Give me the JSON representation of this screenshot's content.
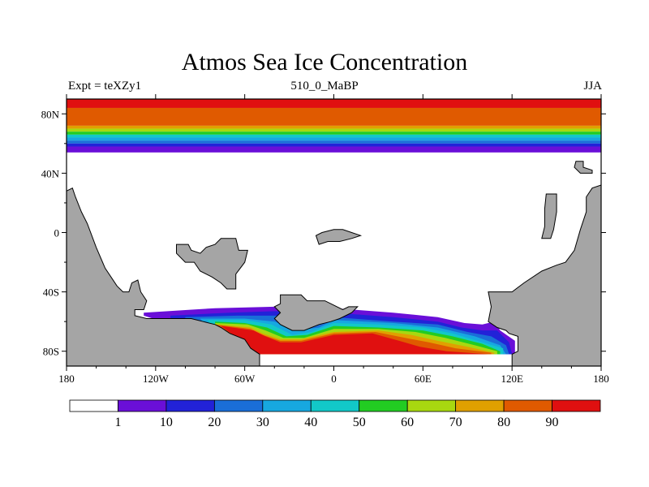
{
  "chart_data": {
    "type": "heatmap",
    "title": "Atmos Sea Ice Concentration",
    "left_label": "Expt = teXZy1",
    "center_label": "510_0_MaBP",
    "right_label": "JJA",
    "x_ticks": [
      {
        "lon": -180,
        "label": "180"
      },
      {
        "lon": -120,
        "label": "120W"
      },
      {
        "lon": -60,
        "label": "60W"
      },
      {
        "lon": 0,
        "label": "0"
      },
      {
        "lon": 60,
        "label": "60E"
      },
      {
        "lon": 120,
        "label": "120E"
      },
      {
        "lon": 180,
        "label": "180"
      }
    ],
    "y_ticks": [
      {
        "lat": 80,
        "label": "80N"
      },
      {
        "lat": 40,
        "label": "40N"
      },
      {
        "lat": 0,
        "label": "0"
      },
      {
        "lat": -40,
        "label": "40S"
      },
      {
        "lat": -80,
        "label": "80S"
      }
    ],
    "xlim": [
      -180,
      180
    ],
    "ylim": [
      -90,
      90
    ],
    "colorbar": {
      "levels": [
        "1",
        "10",
        "20",
        "30",
        "40",
        "50",
        "60",
        "70",
        "80",
        "90"
      ],
      "colors": [
        "#ffffff",
        "#6a0fd8",
        "#2222d8",
        "#1a6ed8",
        "#17a8e0",
        "#12c8c8",
        "#22cc22",
        "#a8d810",
        "#e0a000",
        "#e05a00",
        "#e01010"
      ]
    },
    "northern_ice_bands": [
      {
        "lat_top": 90,
        "lat_bottom": 84,
        "value": 90
      },
      {
        "lat_top": 84,
        "lat_bottom": 72,
        "value": 85
      },
      {
        "lat_top": 72,
        "lat_bottom": 70,
        "value": 75
      },
      {
        "lat_top": 70,
        "lat_bottom": 68,
        "value": 65
      },
      {
        "lat_top": 68,
        "lat_bottom": 66,
        "value": 55
      },
      {
        "lat_top": 66,
        "lat_bottom": 64,
        "value": 45
      },
      {
        "lat_top": 64,
        "lat_bottom": 62,
        "value": 35
      },
      {
        "lat_top": 62,
        "lat_bottom": 60,
        "value": 25
      },
      {
        "lat_top": 60,
        "lat_bottom": 58,
        "value": 15
      },
      {
        "lat_top": 58,
        "lat_bottom": 54,
        "value": 5
      }
    ],
    "southern_ice_rings": [
      {
        "value": 5,
        "points": [
          [
            -128,
            -54
          ],
          [
            -80,
            -51
          ],
          [
            -40,
            -50
          ],
          [
            0,
            -51
          ],
          [
            40,
            -54
          ],
          [
            70,
            -57
          ],
          [
            88,
            -61
          ],
          [
            100,
            -62
          ],
          [
            108,
            -60
          ],
          [
            112,
            -66
          ],
          [
            122,
            -73
          ],
          [
            122,
            -82
          ],
          [
            -50,
            -82
          ],
          [
            -100,
            -65
          ],
          [
            -128,
            -56
          ]
        ]
      },
      {
        "value": 15,
        "points": [
          [
            -110,
            -56
          ],
          [
            -70,
            -54
          ],
          [
            -40,
            -53
          ],
          [
            0,
            -54
          ],
          [
            40,
            -57
          ],
          [
            70,
            -60
          ],
          [
            86,
            -64
          ],
          [
            100,
            -66
          ],
          [
            110,
            -66
          ],
          [
            118,
            -74
          ],
          [
            120,
            -82
          ],
          [
            -50,
            -82
          ],
          [
            -95,
            -65
          ],
          [
            -110,
            -58
          ]
        ]
      },
      {
        "value": 25,
        "points": [
          [
            -100,
            -57
          ],
          [
            -65,
            -56
          ],
          [
            -40,
            -56
          ],
          [
            0,
            -57
          ],
          [
            40,
            -60
          ],
          [
            70,
            -62
          ],
          [
            90,
            -67
          ],
          [
            106,
            -70
          ],
          [
            116,
            -76
          ],
          [
            118,
            -82
          ],
          [
            -50,
            -82
          ],
          [
            -90,
            -65
          ],
          [
            -100,
            -59
          ]
        ]
      },
      {
        "value": 35,
        "points": [
          [
            -90,
            -58
          ],
          [
            -60,
            -58
          ],
          [
            -40,
            -60
          ],
          [
            -25,
            -66
          ],
          [
            -10,
            -64
          ],
          [
            0,
            -59
          ],
          [
            40,
            -61
          ],
          [
            70,
            -64
          ],
          [
            95,
            -70
          ],
          [
            112,
            -76
          ],
          [
            116,
            -82
          ],
          [
            -50,
            -82
          ],
          [
            -85,
            -64
          ]
        ]
      },
      {
        "value": 45,
        "points": [
          [
            -85,
            -59
          ],
          [
            -60,
            -59
          ],
          [
            -42,
            -62
          ],
          [
            -28,
            -69
          ],
          [
            -15,
            -67
          ],
          [
            0,
            -61
          ],
          [
            30,
            -62
          ],
          [
            60,
            -64
          ],
          [
            80,
            -68
          ],
          [
            100,
            -74
          ],
          [
            114,
            -78
          ],
          [
            114,
            -82
          ],
          [
            -50,
            -82
          ],
          [
            -82,
            -64
          ]
        ]
      },
      {
        "value": 55,
        "points": [
          [
            -80,
            -60
          ],
          [
            -60,
            -61
          ],
          [
            -45,
            -64
          ],
          [
            -32,
            -70
          ],
          [
            -18,
            -69
          ],
          [
            0,
            -63
          ],
          [
            30,
            -64
          ],
          [
            60,
            -66
          ],
          [
            80,
            -70
          ],
          [
            100,
            -75
          ],
          [
            112,
            -80
          ],
          [
            112,
            -82
          ],
          [
            -50,
            -82
          ],
          [
            -80,
            -64
          ]
        ]
      },
      {
        "value": 65,
        "points": [
          [
            -80,
            -61
          ],
          [
            -58,
            -62
          ],
          [
            -46,
            -66
          ],
          [
            -34,
            -71
          ],
          [
            -20,
            -71
          ],
          [
            0,
            -65
          ],
          [
            30,
            -65
          ],
          [
            55,
            -67
          ],
          [
            75,
            -71
          ],
          [
            95,
            -76
          ],
          [
            110,
            -80
          ],
          [
            110,
            -82
          ],
          [
            -50,
            -82
          ],
          [
            -80,
            -65
          ]
        ]
      },
      {
        "value": 75,
        "points": [
          [
            -80,
            -62
          ],
          [
            -56,
            -64
          ],
          [
            -48,
            -68
          ],
          [
            -36,
            -72
          ],
          [
            -22,
            -72
          ],
          [
            0,
            -67
          ],
          [
            30,
            -66
          ],
          [
            52,
            -69
          ],
          [
            70,
            -73
          ],
          [
            90,
            -77
          ],
          [
            108,
            -81
          ],
          [
            108,
            -82
          ],
          [
            -50,
            -82
          ],
          [
            -80,
            -65
          ]
        ]
      },
      {
        "value": 85,
        "points": [
          [
            -80,
            -62
          ],
          [
            -56,
            -65
          ],
          [
            -48,
            -69
          ],
          [
            -36,
            -73
          ],
          [
            -22,
            -73
          ],
          [
            0,
            -68
          ],
          [
            28,
            -67
          ],
          [
            48,
            -71
          ],
          [
            64,
            -74
          ],
          [
            82,
            -78
          ],
          [
            106,
            -81
          ],
          [
            106,
            -82
          ],
          [
            -50,
            -82
          ],
          [
            -80,
            -65
          ]
        ]
      },
      {
        "value": 92,
        "points": [
          [
            -76,
            -63
          ],
          [
            -54,
            -66
          ],
          [
            -46,
            -70
          ],
          [
            -36,
            -74
          ],
          [
            -22,
            -74
          ],
          [
            0,
            -69
          ],
          [
            26,
            -68
          ],
          [
            44,
            -73
          ],
          [
            58,
            -77
          ],
          [
            76,
            -80
          ],
          [
            104,
            -82
          ],
          [
            -50,
            -82
          ],
          [
            -72,
            -66
          ]
        ]
      }
    ],
    "land_polygons": [
      {
        "name": "western-continent",
        "points": [
          [
            -180,
            28
          ],
          [
            -176,
            30
          ],
          [
            -174,
            24
          ],
          [
            -170,
            14
          ],
          [
            -166,
            6
          ],
          [
            -160,
            -10
          ],
          [
            -154,
            -24
          ],
          [
            -150,
            -30
          ],
          [
            -146,
            -36
          ],
          [
            -142,
            -40
          ],
          [
            -138,
            -40
          ],
          [
            -136,
            -34
          ],
          [
            -132,
            -32
          ],
          [
            -130,
            -40
          ],
          [
            -126,
            -46
          ],
          [
            -128,
            -52
          ],
          [
            -134,
            -52
          ],
          [
            -134,
            -56
          ],
          [
            -126,
            -58
          ],
          [
            -118,
            -58
          ],
          [
            -108,
            -58
          ],
          [
            -96,
            -58
          ],
          [
            -88,
            -60
          ],
          [
            -80,
            -62
          ],
          [
            -76,
            -64
          ],
          [
            -70,
            -68
          ],
          [
            -60,
            -72
          ],
          [
            -56,
            -78
          ],
          [
            -50,
            -82
          ],
          [
            -50,
            -90
          ],
          [
            -180,
            -90
          ]
        ]
      },
      {
        "name": "central-island",
        "points": [
          [
            -106,
            -8
          ],
          [
            -98,
            -8
          ],
          [
            -96,
            -12
          ],
          [
            -90,
            -14
          ],
          [
            -86,
            -10
          ],
          [
            -80,
            -8
          ],
          [
            -76,
            -4
          ],
          [
            -66,
            -4
          ],
          [
            -64,
            -12
          ],
          [
            -58,
            -12
          ],
          [
            -60,
            -20
          ],
          [
            -66,
            -28
          ],
          [
            -66,
            -38
          ],
          [
            -72,
            -38
          ],
          [
            -76,
            -34
          ],
          [
            -82,
            -30
          ],
          [
            -90,
            -26
          ],
          [
            -94,
            -20
          ],
          [
            -100,
            -20
          ],
          [
            -106,
            -14
          ]
        ]
      },
      {
        "name": "south-land-mass",
        "points": [
          [
            -36,
            -42
          ],
          [
            -22,
            -42
          ],
          [
            -18,
            -46
          ],
          [
            -6,
            -46
          ],
          [
            -2,
            -48
          ],
          [
            6,
            -52
          ],
          [
            10,
            -50
          ],
          [
            16,
            -50
          ],
          [
            12,
            -54
          ],
          [
            4,
            -58
          ],
          [
            -2,
            -60
          ],
          [
            -10,
            -62
          ],
          [
            -20,
            -66
          ],
          [
            -28,
            -66
          ],
          [
            -36,
            -62
          ],
          [
            -40,
            -58
          ],
          [
            -36,
            -54
          ],
          [
            -40,
            -50
          ],
          [
            -36,
            -48
          ]
        ]
      },
      {
        "name": "north-small-island",
        "points": [
          [
            -12,
            -2
          ],
          [
            -8,
            0
          ],
          [
            0,
            2
          ],
          [
            6,
            2
          ],
          [
            12,
            0
          ],
          [
            18,
            -2
          ],
          [
            12,
            -4
          ],
          [
            4,
            -6
          ],
          [
            -4,
            -6
          ],
          [
            -10,
            -8
          ]
        ]
      },
      {
        "name": "eastern-continent",
        "points": [
          [
            180,
            32
          ],
          [
            174,
            30
          ],
          [
            170,
            24
          ],
          [
            170,
            14
          ],
          [
            166,
            2
          ],
          [
            162,
            -12
          ],
          [
            156,
            -20
          ],
          [
            150,
            -22
          ],
          [
            140,
            -26
          ],
          [
            128,
            -34
          ],
          [
            120,
            -40
          ],
          [
            110,
            -40
          ],
          [
            104,
            -40
          ],
          [
            106,
            -50
          ],
          [
            104,
            -60
          ],
          [
            110,
            -64
          ],
          [
            116,
            -66
          ],
          [
            118,
            -68
          ],
          [
            124,
            -70
          ],
          [
            124,
            -80
          ],
          [
            120,
            -82
          ],
          [
            120,
            -90
          ],
          [
            180,
            -90
          ]
        ]
      },
      {
        "name": "east-island",
        "points": [
          [
            143,
            26
          ],
          [
            150,
            26
          ],
          [
            150,
            14
          ],
          [
            148,
            2
          ],
          [
            146,
            -4
          ],
          [
            140,
            -4
          ],
          [
            142,
            4
          ],
          [
            142,
            16
          ]
        ]
      },
      {
        "name": "northeast-islet",
        "points": [
          [
            163,
            48
          ],
          [
            168,
            48
          ],
          [
            168,
            44
          ],
          [
            174,
            42
          ],
          [
            174,
            40
          ],
          [
            166,
            40
          ],
          [
            162,
            44
          ]
        ]
      }
    ]
  }
}
